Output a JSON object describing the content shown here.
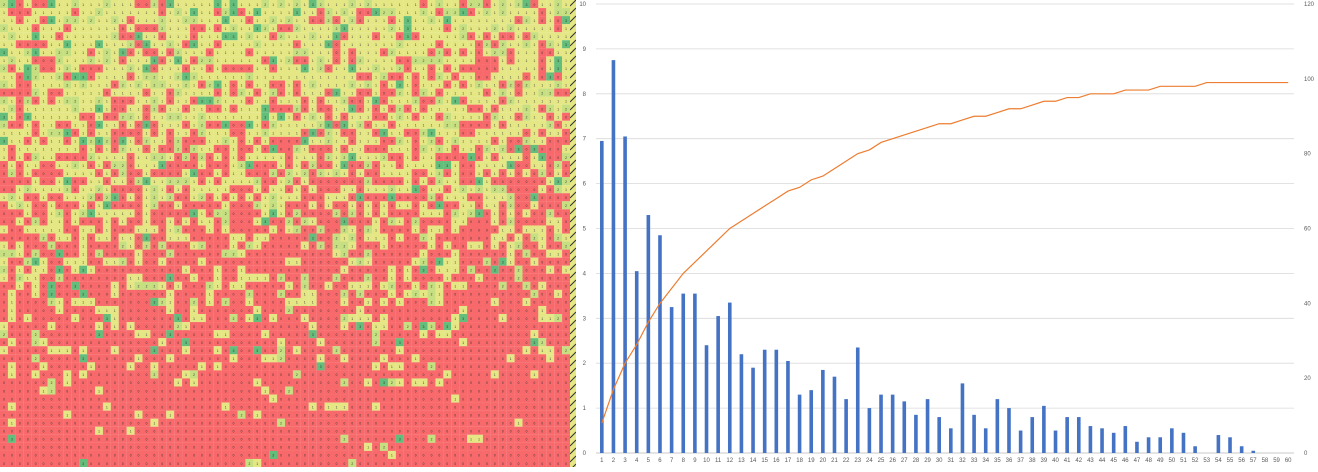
{
  "heatmap": {
    "type": "heatmap",
    "rows": 58,
    "cols": 72,
    "seed": 7,
    "colors": {
      "zero": "#f8696b",
      "one": "#e4e784",
      "two": "#c6df81",
      "high": "#63be7b"
    }
  },
  "chart_data": {
    "type": "bar",
    "categories": [
      "1",
      "2",
      "3",
      "4",
      "5",
      "6",
      "7",
      "8",
      "9",
      "10",
      "11",
      "12",
      "13",
      "14",
      "15",
      "16",
      "17",
      "18",
      "19",
      "20",
      "21",
      "22",
      "23",
      "24",
      "25",
      "26",
      "27",
      "28",
      "29",
      "30",
      "31",
      "32",
      "33",
      "34",
      "35",
      "36",
      "37",
      "38",
      "39",
      "40",
      "41",
      "42",
      "43",
      "44",
      "45",
      "46",
      "47",
      "48",
      "49",
      "50",
      "51",
      "52",
      "53",
      "54",
      "55",
      "56",
      "57",
      "58",
      "59",
      "60"
    ],
    "series": [
      {
        "type": "bar",
        "axis": "left",
        "color": "#4472c4",
        "values": [
          6.95,
          8.75,
          7.05,
          4.05,
          5.3,
          4.85,
          3.25,
          3.55,
          3.55,
          2.4,
          3.05,
          3.35,
          2.2,
          1.9,
          2.3,
          2.3,
          2.05,
          1.3,
          1.4,
          1.85,
          1.7,
          1.2,
          2.35,
          1.0,
          1.3,
          1.3,
          1.15,
          0.85,
          1.2,
          0.8,
          0.55,
          1.55,
          0.85,
          0.55,
          1.2,
          1.0,
          0.5,
          0.8,
          1.05,
          0.5,
          0.8,
          0.8,
          0.6,
          0.55,
          0.45,
          0.6,
          0.25,
          0.35,
          0.35,
          0.55,
          0.45,
          0.15,
          0.0,
          0.4,
          0.35,
          0.15,
          0.05,
          0.0,
          0.0,
          0.0
        ]
      },
      {
        "type": "line",
        "axis": "right",
        "color": "#ed7d31",
        "values": [
          8,
          17,
          24,
          29,
          35,
          40,
          44,
          48,
          51,
          54,
          57,
          60,
          62,
          64,
          66,
          68,
          70,
          71,
          73,
          74,
          76,
          78,
          80,
          81,
          83,
          84,
          85,
          86,
          87,
          88,
          88,
          89,
          90,
          90,
          91,
          92,
          92,
          93,
          94,
          94,
          95,
          95,
          96,
          96,
          96,
          97,
          97,
          97,
          98,
          98,
          98,
          98,
          99,
          99,
          99,
          99,
          99,
          99,
          99,
          99
        ]
      }
    ],
    "y_left": {
      "min": 0,
      "max": 10,
      "step": 1,
      "ticks": [
        "0",
        "1",
        "2",
        "3",
        "4",
        "5",
        "6",
        "7",
        "8",
        "9",
        "10"
      ]
    },
    "y_right": {
      "min": 0,
      "max": 120,
      "step": 20,
      "ticks": [
        "0",
        "20",
        "40",
        "60",
        "80",
        "100",
        "120"
      ]
    },
    "grid": true,
    "gridline_color": "#d9d9d9",
    "title": "",
    "xlabel": "",
    "ylabel": "",
    "legend": "none"
  }
}
